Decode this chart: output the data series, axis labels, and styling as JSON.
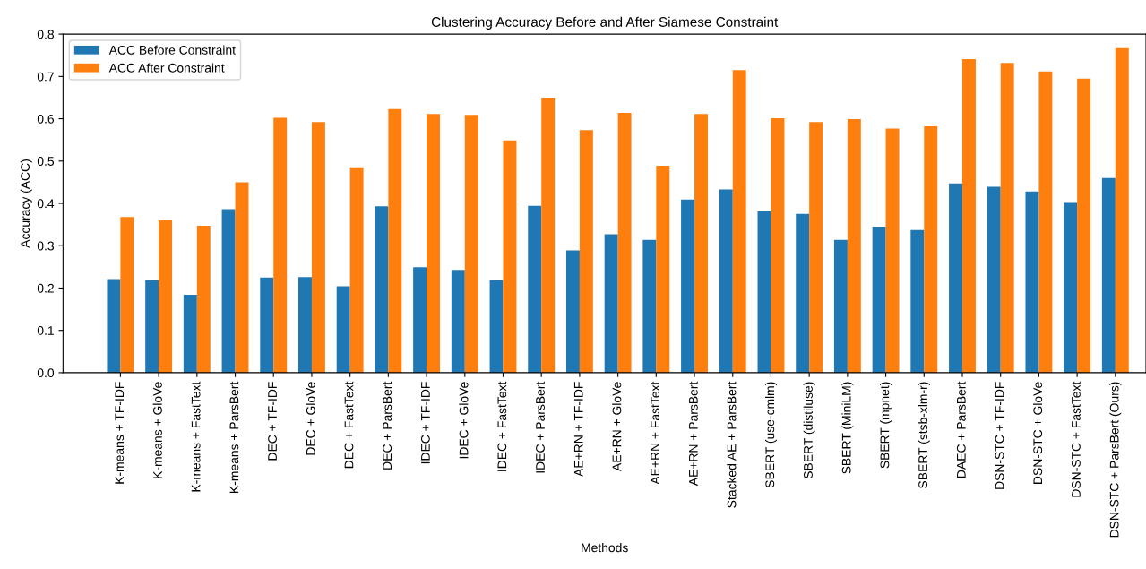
{
  "chart_data": {
    "type": "bar",
    "title": "Clustering Accuracy Before and After Siamese Constraint",
    "xlabel": "Methods",
    "ylabel": "Accuracy (ACC)",
    "categories": [
      "K-means + TF-IDF",
      "K-means + GloVe",
      "K-means + FastText",
      "K-means + ParsBert",
      "DEC + TF-IDF",
      "DEC + GloVe",
      "DEC + FastText",
      "DEC + ParsBert",
      "IDEC + TF-IDF",
      "IDEC + GloVe",
      "IDEC + FastText",
      "IDEC + ParsBert",
      "AE+RN + TF-IDF",
      "AE+RN + GloVe",
      "AE+RN + FastText",
      "AE+RN + ParsBert",
      "Stacked AE + ParsBert",
      "SBERT (use-cmlm)",
      "SBERT (distiluse)",
      "SBERT (MiniLM)",
      "SBERT (mpnet)",
      "SBERT (stsb-xlm-r)",
      "DAEC + ParsBert",
      "DSN-STC + TF-IDF",
      "DSN-STC + GloVe",
      "DSN-STC + FastText",
      "DSN-STC + ParsBert (Ours)"
    ],
    "series": [
      {
        "name": "ACC Before Constraint",
        "color": "#1f77b4",
        "values": [
          0.221,
          0.219,
          0.184,
          0.386,
          0.225,
          0.226,
          0.204,
          0.393,
          0.249,
          0.243,
          0.219,
          0.394,
          0.289,
          0.327,
          0.314,
          0.409,
          0.433,
          0.381,
          0.375,
          0.314,
          0.345,
          0.337,
          0.447,
          0.439,
          0.428,
          0.403,
          0.46
        ]
      },
      {
        "name": "ACC After Constraint",
        "color": "#ff7f0e",
        "values": [
          0.368,
          0.36,
          0.347,
          0.45,
          0.602,
          0.592,
          0.485,
          0.623,
          0.611,
          0.609,
          0.549,
          0.65,
          0.573,
          0.614,
          0.489,
          0.611,
          0.715,
          0.601,
          0.592,
          0.599,
          0.577,
          0.582,
          0.741,
          0.732,
          0.712,
          0.695,
          0.767
        ]
      }
    ],
    "ylim": [
      0,
      0.8
    ],
    "yticks": [
      {
        "value": 0,
        "label": "0.0"
      },
      0.1,
      0.2,
      0.3,
      0.4,
      0.5,
      0.6,
      0.7,
      0.8
    ],
    "legend": "top left",
    "grid": false
  }
}
